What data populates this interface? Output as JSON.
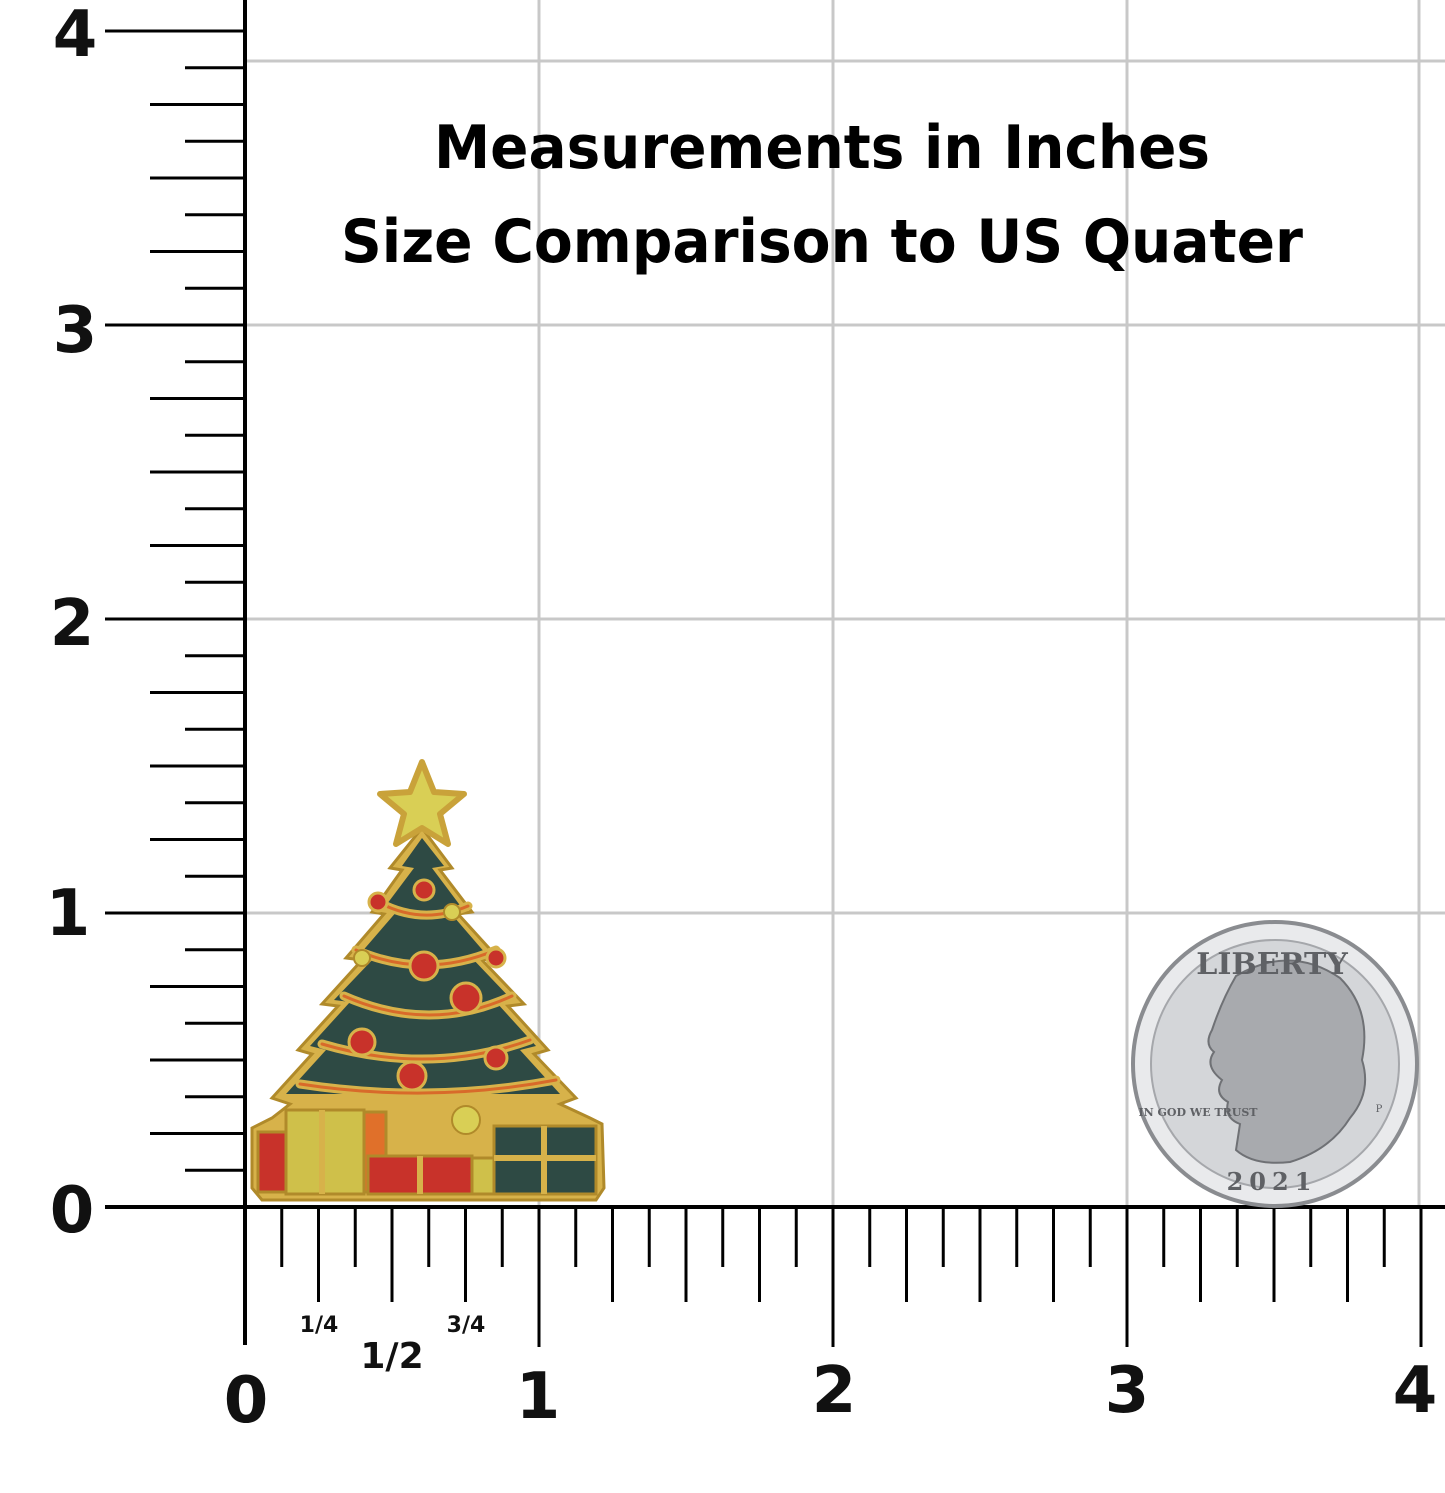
{
  "title": {
    "line1": "Measurements in Inches",
    "line2": "Size Comparison to US Quater"
  },
  "y_axis": {
    "labels": [
      "0",
      "1",
      "2",
      "3",
      "4"
    ]
  },
  "x_axis": {
    "labels": [
      "0",
      "1",
      "2",
      "3",
      "4"
    ],
    "fraction_labels": [
      "1/4",
      "1/2",
      "3/4"
    ]
  },
  "coin": {
    "legend_top": "LIBERTY",
    "motto": "IN GOD WE TRUST",
    "year": "2021",
    "mint_mark": "P"
  },
  "colors": {
    "grid": "#c8c8c8",
    "ruler": "#000000",
    "tree_green": "#2e4a44",
    "gold": "#d7b24a",
    "ornament_red": "#c8322a",
    "star_yellow": "#d9cf55",
    "coin_silver": "#cfd1d4"
  }
}
